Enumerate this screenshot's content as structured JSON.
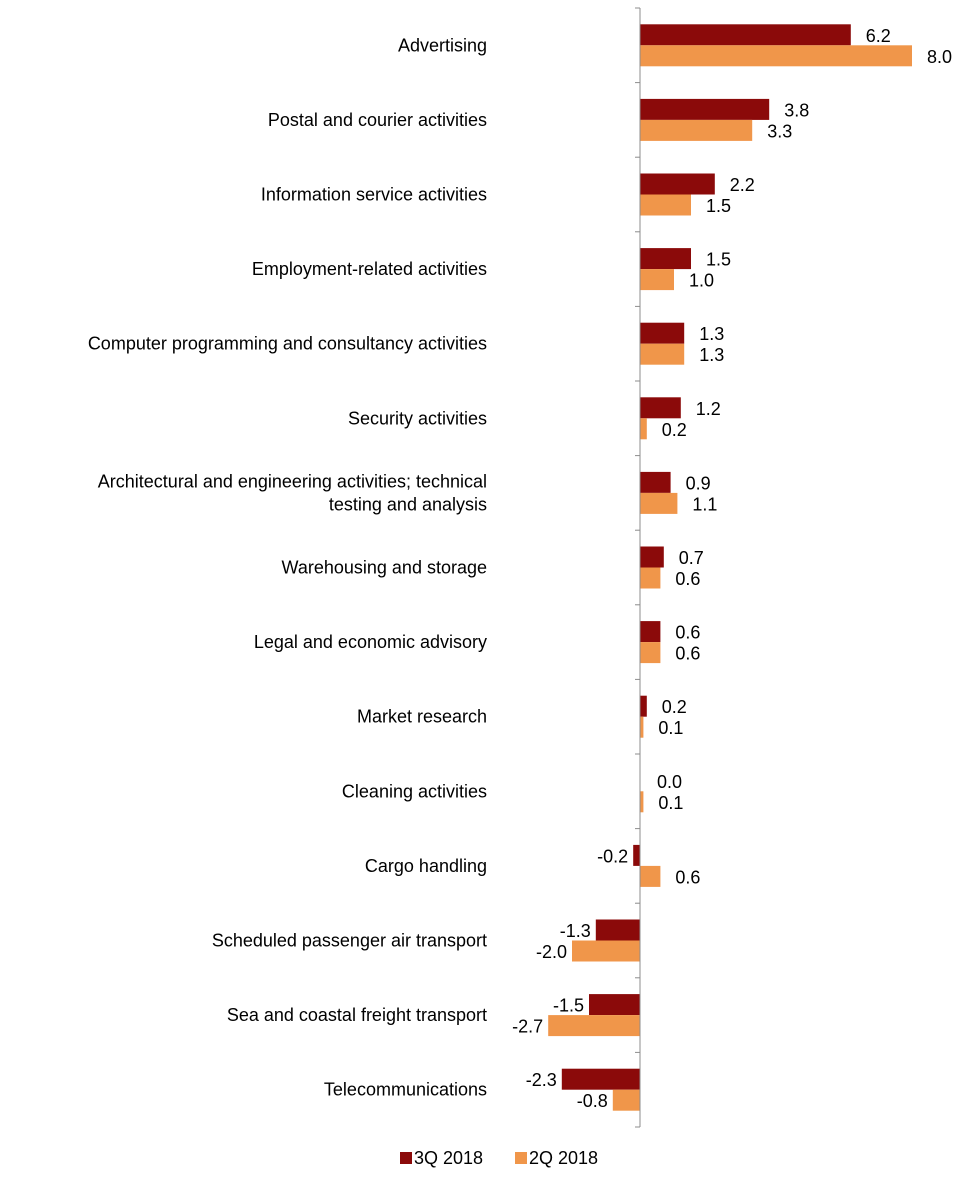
{
  "chart_data": {
    "type": "bar",
    "orientation": "horizontal",
    "categories": [
      "Advertising",
      "Postal and courier activities",
      "Information service activities",
      "Employment-related activities",
      "Computer programming and consultancy activities",
      "Security activities",
      [
        "Architectural and engineering activities; technical",
        "testing and analysis"
      ],
      "Warehousing and storage",
      "Legal and economic advisory",
      "Market research",
      "Cleaning activities",
      "Cargo handling",
      "Scheduled passenger air transport",
      "Sea and coastal freight transport",
      "Telecommunications"
    ],
    "series": [
      {
        "name": "3Q 2018",
        "color": "#8b0a0a",
        "values": [
          6.2,
          3.8,
          2.2,
          1.5,
          1.3,
          1.2,
          0.9,
          0.7,
          0.6,
          0.2,
          0.0,
          -0.2,
          -1.3,
          -1.5,
          -2.3
        ],
        "labels": [
          "6.2",
          "3.8",
          "2.2",
          "1.5",
          "1.3",
          "1.2",
          "0.9",
          "0.7",
          "0.6",
          "0.2",
          "0.0",
          "-0.2",
          "-1.3",
          "-1.5",
          "-2.3"
        ]
      },
      {
        "name": "2Q 2018",
        "color": "#f0964a",
        "values": [
          8.0,
          3.3,
          1.5,
          1.0,
          1.3,
          0.2,
          1.1,
          0.6,
          0.6,
          0.1,
          0.1,
          0.6,
          -2.0,
          -2.7,
          -0.8
        ],
        "labels": [
          "8.0",
          "3.3",
          "1.5",
          "1.0",
          "1.3",
          "0.2",
          "1.1",
          "0.6",
          "0.6",
          "0.1",
          "0.1",
          "0.6",
          "-2.0",
          "-2.7",
          "-0.8"
        ]
      }
    ],
    "title": "",
    "xlabel": "",
    "ylabel": "",
    "xlim": [
      -2.9,
      8.0
    ],
    "grid": false,
    "legend": "bottom"
  }
}
